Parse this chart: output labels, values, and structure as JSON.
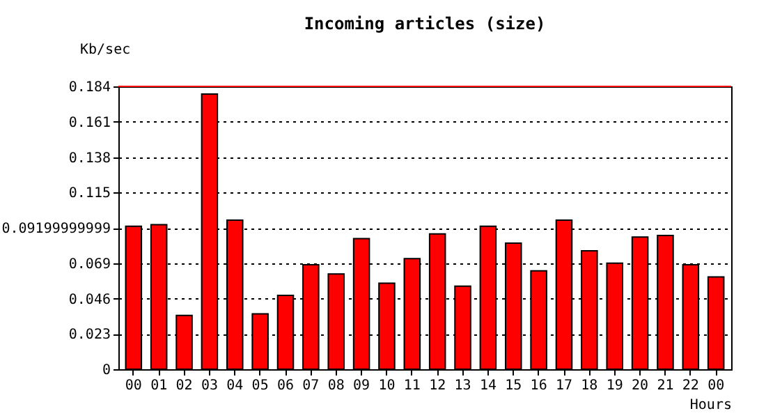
{
  "chart_data": {
    "type": "bar",
    "title": "Incoming articles (size)",
    "xlabel": "Hours",
    "ylabel": "Kb/sec",
    "categories": [
      "00",
      "01",
      "02",
      "03",
      "04",
      "05",
      "06",
      "07",
      "08",
      "09",
      "10",
      "11",
      "12",
      "13",
      "14",
      "15",
      "16",
      "17",
      "18",
      "19",
      "20",
      "21",
      "22",
      "00"
    ],
    "series": [
      {
        "color": "#ff0000",
        "values": [
          0.093,
          0.094,
          0.035,
          0.179,
          0.097,
          0.036,
          0.048,
          0.068,
          0.062,
          0.085,
          0.056,
          0.072,
          0.088,
          0.054,
          0.093,
          0.082,
          0.064,
          0.097,
          0.077,
          0.069,
          0.086,
          0.087,
          0.068,
          0.06
        ]
      }
    ],
    "ylim": [
      0,
      0.184
    ],
    "yticks": [
      0,
      0.023,
      0.046,
      0.069,
      0.09199999999,
      0.115,
      0.138,
      0.161,
      0.184
    ],
    "grid": "y",
    "line_style": "dotted",
    "ref_lines": [
      {
        "axis": "y",
        "value": 0.184,
        "color": "#ff0000"
      }
    ]
  }
}
